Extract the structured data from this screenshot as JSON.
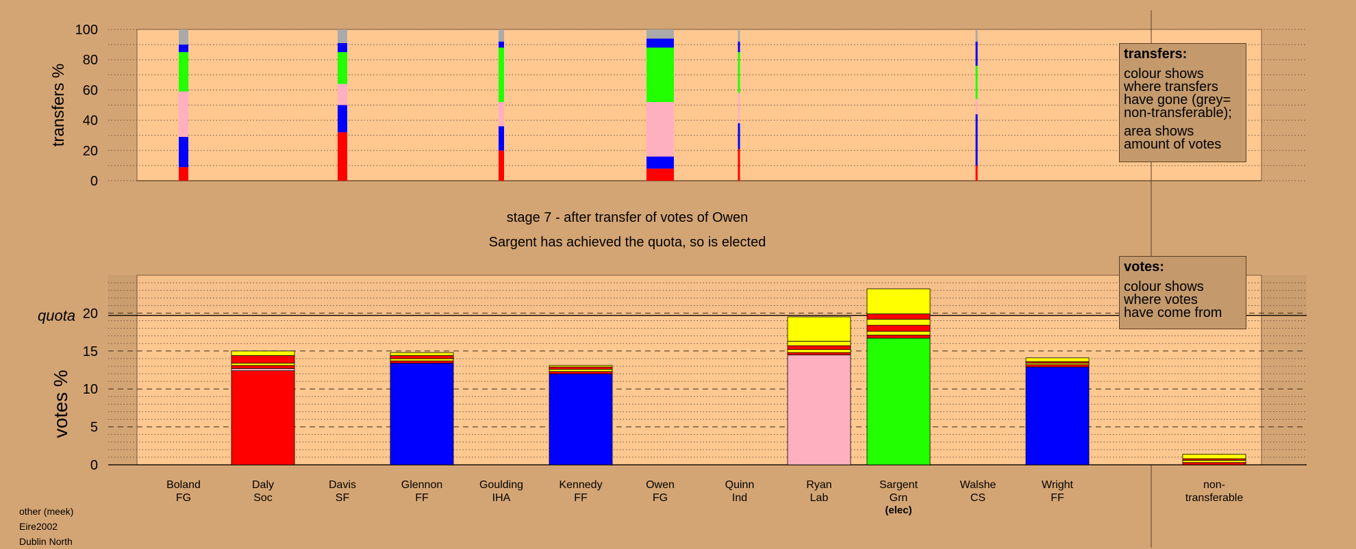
{
  "page": {
    "title_line1": "stage 7 - after transfer of votes of Owen",
    "title_line2": "Sargent has achieved the quota, so is elected",
    "footer": [
      "other (meek)",
      "Eire2002",
      "Dublin North"
    ]
  },
  "legends": {
    "transfers": {
      "heading": "transfers:",
      "lines": [
        "colour shows",
        "where transfers",
        "have gone (grey=",
        "non-transferable);",
        "",
        "area shows",
        "amount of votes"
      ]
    },
    "votes": {
      "heading": "votes:",
      "lines": [
        "colour shows",
        "where votes",
        "have come from"
      ]
    }
  },
  "colors": {
    "background": "#d4a574",
    "plot_bg": "#ffc890",
    "Soc": "#ff0000",
    "FF": "#0000ff",
    "Lab": "#ffb0c0",
    "Grn": "#22ff00",
    "FG": "#ffff00",
    "non_transferable": "#b0b0b0",
    "transfer_gray": "#aaaaaa"
  },
  "chart_data": [
    {
      "type": "bar",
      "name": "transfers",
      "ylabel": "transfers %",
      "ylim": [
        0,
        100
      ],
      "yticks": [
        0,
        20,
        40,
        60,
        80,
        100
      ],
      "grid": true,
      "categories": [
        "Boland",
        "Daly",
        "Davis",
        "Glennon",
        "Goulding",
        "Kennedy",
        "Owen",
        "Quinn",
        "Ryan",
        "Sargent",
        "Walshe",
        "Wright"
      ],
      "bars": [
        {
          "candidate": "Boland",
          "width": "medium",
          "segments": [
            {
              "to": "Soc",
              "color": "#ff0000",
              "from": 0,
              "to_pct": 9
            },
            {
              "to": "FF",
              "color": "#0000ff",
              "from": 9,
              "to_pct": 29
            },
            {
              "to": "Lab",
              "color": "#ffb0c0",
              "from": 29,
              "to_pct": 59
            },
            {
              "to": "Grn",
              "color": "#22ff00",
              "from": 59,
              "to_pct": 85
            },
            {
              "to": "FF",
              "color": "#0000ff",
              "from": 85,
              "to_pct": 90
            },
            {
              "to": "non-transferable",
              "color": "#aaaaaa",
              "from": 90,
              "to_pct": 100
            }
          ]
        },
        {
          "candidate": "Davis",
          "width": "medium",
          "segments": [
            {
              "to": "Soc",
              "color": "#ff0000",
              "from": 0,
              "to_pct": 32
            },
            {
              "to": "FF",
              "color": "#0000ff",
              "from": 32,
              "to_pct": 50
            },
            {
              "to": "Lab",
              "color": "#ffb0c0",
              "from": 50,
              "to_pct": 64
            },
            {
              "to": "Grn",
              "color": "#22ff00",
              "from": 64,
              "to_pct": 85
            },
            {
              "to": "FF",
              "color": "#0000ff",
              "from": 85,
              "to_pct": 91
            },
            {
              "to": "non-transferable",
              "color": "#aaaaaa",
              "from": 91,
              "to_pct": 100
            }
          ]
        },
        {
          "candidate": "Goulding",
          "width": "narrow",
          "segments": [
            {
              "to": "Soc",
              "color": "#ff0000",
              "from": 0,
              "to_pct": 20
            },
            {
              "to": "FF",
              "color": "#0000ff",
              "from": 20,
              "to_pct": 36
            },
            {
              "to": "Lab",
              "color": "#ffb0c0",
              "from": 36,
              "to_pct": 52
            },
            {
              "to": "Grn",
              "color": "#22ff00",
              "from": 52,
              "to_pct": 88
            },
            {
              "to": "FF",
              "color": "#0000ff",
              "from": 88,
              "to_pct": 92
            },
            {
              "to": "non-transferable",
              "color": "#aaaaaa",
              "from": 92,
              "to_pct": 100
            }
          ]
        },
        {
          "candidate": "Quinn",
          "width": "wide",
          "segments": [
            {
              "to": "Soc",
              "color": "#ff0000",
              "from": 0,
              "to_pct": 8
            },
            {
              "to": "FF",
              "color": "#0000ff",
              "from": 8,
              "to_pct": 16
            },
            {
              "to": "Lab",
              "color": "#ffb0c0",
              "from": 16,
              "to_pct": 52
            },
            {
              "to": "Grn",
              "color": "#22ff00",
              "from": 52,
              "to_pct": 88
            },
            {
              "to": "FF",
              "color": "#0000ff",
              "from": 88,
              "to_pct": 94
            },
            {
              "to": "non-transferable",
              "color": "#aaaaaa",
              "from": 94,
              "to_pct": 100
            }
          ]
        },
        {
          "candidate": "Owen-stage",
          "width": "thin",
          "segments": [
            {
              "to": "Soc",
              "color": "#ff0000",
              "from": 0,
              "to_pct": 21
            },
            {
              "to": "FF",
              "color": "#0000ff",
              "from": 21,
              "to_pct": 38
            },
            {
              "to": "Lab",
              "color": "#ffb0c0",
              "from": 38,
              "to_pct": 58
            },
            {
              "to": "Grn",
              "color": "#22ff00",
              "from": 58,
              "to_pct": 85
            },
            {
              "to": "FF",
              "color": "#0000ff",
              "from": 85,
              "to_pct": 92
            },
            {
              "to": "non-transferable",
              "color": "#aaaaaa",
              "from": 92,
              "to_pct": 100
            }
          ]
        },
        {
          "candidate": "Walshe-stage",
          "width": "thin",
          "segments": [
            {
              "to": "Soc",
              "color": "#ff0000",
              "from": 0,
              "to_pct": 10
            },
            {
              "to": "FF",
              "color": "#0000ff",
              "from": 10,
              "to_pct": 44
            },
            {
              "to": "Lab",
              "color": "#ffb0c0",
              "from": 44,
              "to_pct": 54
            },
            {
              "to": "Grn",
              "color": "#22ff00",
              "from": 54,
              "to_pct": 76
            },
            {
              "to": "FF",
              "color": "#0000ff",
              "from": 76,
              "to_pct": 92
            },
            {
              "to": "non-transferable",
              "color": "#aaaaaa",
              "from": 92,
              "to_pct": 100
            }
          ]
        }
      ]
    },
    {
      "type": "bar",
      "name": "votes",
      "ylabel": "votes %",
      "ylim": [
        0,
        25
      ],
      "yticks": [
        0,
        5,
        10,
        15,
        20
      ],
      "quota": 19.7,
      "quota_label": "quota",
      "grid": true,
      "candidates": [
        {
          "name": "Boland",
          "party": "FG",
          "note": "",
          "segments": []
        },
        {
          "name": "Daly",
          "party": "Soc",
          "note": "",
          "segments": [
            {
              "color": "#ff0000",
              "value": 12.4
            },
            {
              "color": "#ffb0c0",
              "value": 0.3
            },
            {
              "color": "#ff0000",
              "value": 0.4
            },
            {
              "color": "#ffff00",
              "value": 0.3
            },
            {
              "color": "#ff0000",
              "value": 1.0
            },
            {
              "color": "#ffff00",
              "value": 0.6
            }
          ]
        },
        {
          "name": "Davis",
          "party": "SF",
          "note": "",
          "segments": []
        },
        {
          "name": "Glennon",
          "party": "FF",
          "note": "",
          "segments": [
            {
              "color": "#0000ff",
              "value": 13.4
            },
            {
              "color": "#ff0000",
              "value": 0.3
            },
            {
              "color": "#ffff00",
              "value": 0.3
            },
            {
              "color": "#ff0000",
              "value": 0.4
            },
            {
              "color": "#ffff00",
              "value": 0.4
            }
          ]
        },
        {
          "name": "Goulding",
          "party": "IHA",
          "note": "",
          "segments": []
        },
        {
          "name": "Kennedy",
          "party": "FF",
          "note": "",
          "segments": [
            {
              "color": "#0000ff",
              "value": 12.0
            },
            {
              "color": "#ff0000",
              "value": 0.3
            },
            {
              "color": "#ffff00",
              "value": 0.3
            },
            {
              "color": "#ff0000",
              "value": 0.3
            },
            {
              "color": "#ffff00",
              "value": 0.2
            }
          ]
        },
        {
          "name": "Owen",
          "party": "FG",
          "note": "",
          "segments": []
        },
        {
          "name": "Quinn",
          "party": "Ind",
          "note": "",
          "segments": []
        },
        {
          "name": "Ryan",
          "party": "Lab",
          "note": "",
          "segments": [
            {
              "color": "#ffb0c0",
              "value": 14.5
            },
            {
              "color": "#ff0000",
              "value": 0.3
            },
            {
              "color": "#ffff00",
              "value": 0.4
            },
            {
              "color": "#ff0000",
              "value": 0.5
            },
            {
              "color": "#ffff00",
              "value": 0.6
            },
            {
              "color": "#ffff00",
              "value": 3.2
            }
          ]
        },
        {
          "name": "Sargent",
          "party": "Grn",
          "note": "(elec)",
          "segments": [
            {
              "color": "#22ff00",
              "value": 16.7
            },
            {
              "color": "#ff0000",
              "value": 0.4
            },
            {
              "color": "#ffff00",
              "value": 0.5
            },
            {
              "color": "#ff0000",
              "value": 0.8
            },
            {
              "color": "#ffff00",
              "value": 0.8
            },
            {
              "color": "#ff0000",
              "value": 0.7
            },
            {
              "color": "#ffff00",
              "value": 3.3
            }
          ]
        },
        {
          "name": "Walshe",
          "party": "CS",
          "note": "",
          "segments": []
        },
        {
          "name": "Wright",
          "party": "FF",
          "note": "",
          "segments": [
            {
              "color": "#0000ff",
              "value": 12.9
            },
            {
              "color": "#ff0000",
              "value": 0.3
            },
            {
              "color": "#ffff00",
              "value": 0.2
            },
            {
              "color": "#ff0000",
              "value": 0.2
            },
            {
              "color": "#ffff00",
              "value": 0.5
            }
          ]
        },
        {
          "name": "non-",
          "party": "transferable",
          "note": "",
          "segments": [
            {
              "color": "#ff0000",
              "value": 0.3
            },
            {
              "color": "#ffff00",
              "value": 0.3
            },
            {
              "color": "#ff0000",
              "value": 0.2
            },
            {
              "color": "#ffff00",
              "value": 0.6
            }
          ]
        }
      ]
    }
  ]
}
